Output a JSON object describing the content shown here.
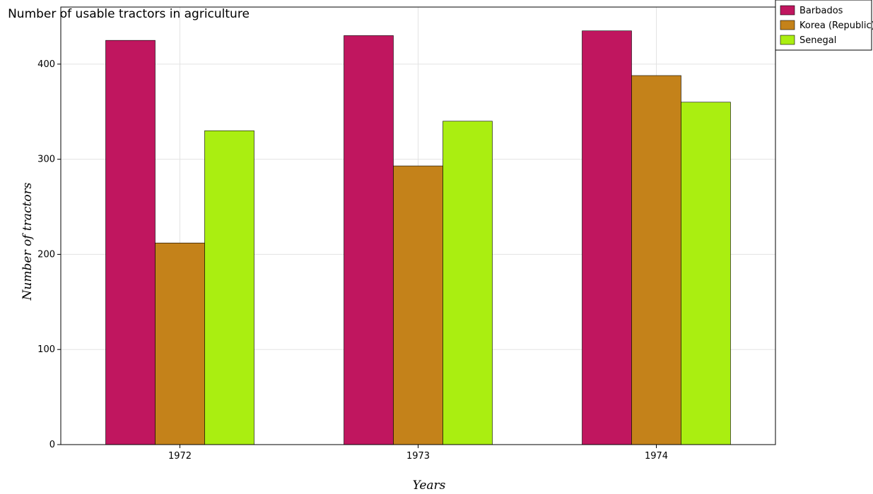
{
  "chart_data": {
    "type": "bar",
    "title": "Number of usable tractors in agriculture",
    "xlabel": "Years",
    "ylabel": "Number of tractors",
    "categories": [
      "1972",
      "1973",
      "1974"
    ],
    "series": [
      {
        "name": "Barbados",
        "color": "#c0165f",
        "values": [
          425,
          430,
          435
        ]
      },
      {
        "name": "Korea (Republic)",
        "color": "#c4821a",
        "values": [
          212,
          293,
          388
        ]
      },
      {
        "name": "Senegal",
        "color": "#aaee11",
        "values": [
          330,
          340,
          360
        ]
      }
    ],
    "ylim": [
      0,
      460
    ],
    "yticks": [
      0,
      100,
      200,
      300,
      400
    ],
    "grid": true,
    "legend_position": "top-right"
  }
}
